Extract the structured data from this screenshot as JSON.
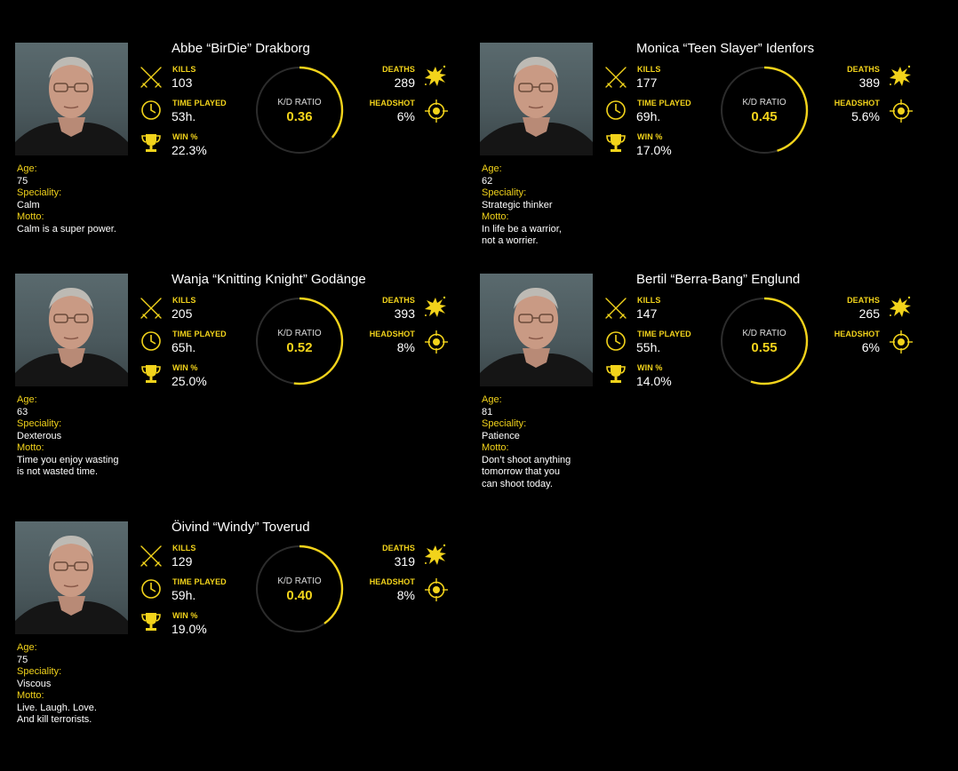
{
  "accent_color": "#f2d31b",
  "labels": {
    "kills": "KILLS",
    "time_played": "TIME PLAYED",
    "win": "WIN %",
    "deaths": "DEATHS",
    "headshot": "HEADSHOT",
    "kd": "K/D RATIO",
    "age": "Age:",
    "speciality": "Speciality:",
    "motto": "Motto:"
  },
  "players": [
    {
      "name": "Abbe “BirDie” Drakborg",
      "kills": "103",
      "time_played": "53h.",
      "win": "22.3%",
      "deaths": "289",
      "headshot": "6%",
      "kd": "0.36",
      "kd_value": 0.36,
      "age": "75",
      "speciality": "Calm",
      "motto": "Calm is a super power."
    },
    {
      "name": "Monica “Teen Slayer” Idenfors",
      "kills": "177",
      "time_played": "69h.",
      "win": "17.0%",
      "deaths": "389",
      "headshot": "5.6%",
      "kd": "0.45",
      "kd_value": 0.45,
      "age": "62",
      "speciality": "Strategic thinker",
      "motto": "In life be a warrior,\nnot a worrier."
    },
    {
      "name": "Wanja “Knitting Knight” Godänge",
      "kills": "205",
      "time_played": "65h.",
      "win": "25.0%",
      "deaths": "393",
      "headshot": "8%",
      "kd": "0.52",
      "kd_value": 0.52,
      "age": "63",
      "speciality": "Dexterous",
      "motto": "Time you enjoy wasting\nis not wasted time."
    },
    {
      "name": "Bertil “Berra-Bang” Englund",
      "kills": "147",
      "time_played": "55h.",
      "win": "14.0%",
      "deaths": "265",
      "headshot": "6%",
      "kd": "0.55",
      "kd_value": 0.55,
      "age": "81",
      "speciality": "Patience",
      "motto": "Don’t shoot anything\ntomorrow that you\ncan shoot today."
    },
    {
      "name": "Öivind “Windy” Toverud",
      "kills": "129",
      "time_played": "59h.",
      "win": "19.0%",
      "deaths": "319",
      "headshot": "8%",
      "kd": "0.40",
      "kd_value": 0.4,
      "age": "75",
      "speciality": "Viscous",
      "motto": "Live. Laugh. Love.\nAnd kill terrorists."
    }
  ]
}
